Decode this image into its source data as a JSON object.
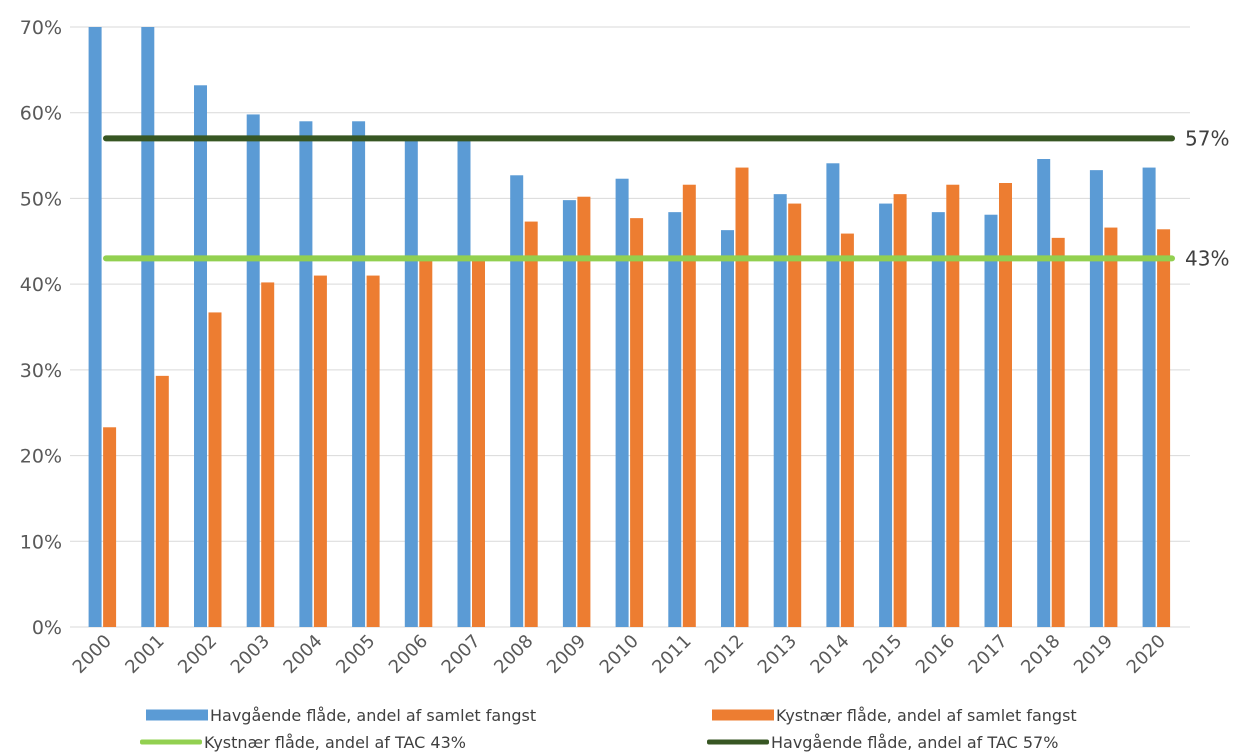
{
  "chart_data": {
    "type": "bar",
    "categories": [
      "2000",
      "2001",
      "2002",
      "2003",
      "2004",
      "2005",
      "2006",
      "2007",
      "2008",
      "2009",
      "2010",
      "2011",
      "2012",
      "2013",
      "2014",
      "2015",
      "2016",
      "2017",
      "2018",
      "2019",
      "2020"
    ],
    "series": [
      {
        "name": "Havgående flåde, andel af samlet fangst",
        "kind": "bar",
        "color": "#5b9bd5",
        "values": [
          70,
          70,
          63.2,
          59.8,
          59,
          59,
          57,
          57,
          52.7,
          49.8,
          52.3,
          48.4,
          46.3,
          50.5,
          54.1,
          49.4,
          48.4,
          48.1,
          54.6,
          53.3,
          53.6
        ]
      },
      {
        "name": "Kystnær flåde, andel af samlet fangst",
        "kind": "bar",
        "color": "#ed7d31",
        "values": [
          23.3,
          29.3,
          36.7,
          40.2,
          41,
          41,
          43,
          43,
          47.3,
          50.2,
          47.7,
          51.6,
          53.6,
          49.4,
          45.9,
          50.5,
          51.6,
          51.8,
          45.4,
          46.6,
          46.4
        ]
      },
      {
        "name": "Kystnær flåde, andel af TAC 43%",
        "kind": "line",
        "color": "#92d050",
        "value": 43,
        "end_label": "43%"
      },
      {
        "name": "Havgående flåde, andel af TAC 57%",
        "kind": "line",
        "color": "#375623",
        "value": 57,
        "end_label": "57%"
      }
    ],
    "y_ticks": [
      "0%",
      "10%",
      "20%",
      "30%",
      "40%",
      "50%",
      "60%",
      "70%"
    ],
    "ylim": [
      0,
      70
    ],
    "grid": true,
    "legend_position": "bottom"
  }
}
